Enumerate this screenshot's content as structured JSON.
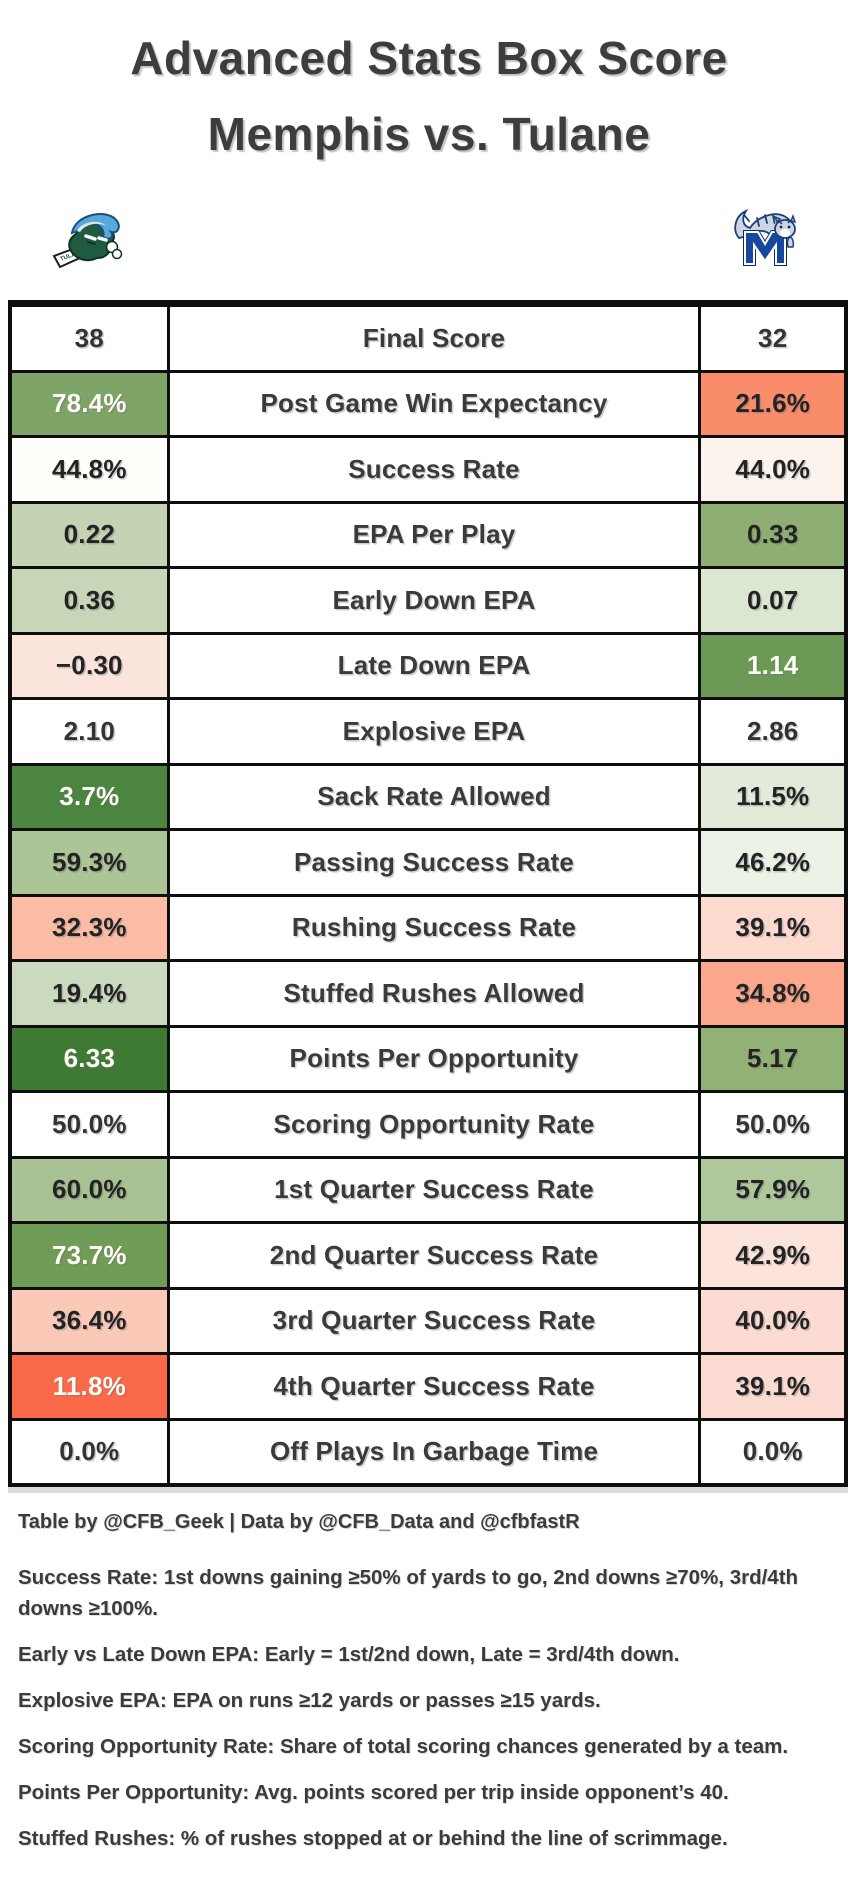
{
  "title": {
    "line1": "Advanced Stats Box Score",
    "line2": "Memphis vs. Tulane"
  },
  "logos": {
    "left": "tulane-green-wave-logo",
    "right": "memphis-tigers-logo"
  },
  "teams": {
    "left": {
      "name": "Tulane",
      "final_score": 38,
      "color_primary": "#1e5b41",
      "color_secondary": "#58a8dc"
    },
    "right": {
      "name": "Memphis",
      "final_score": 32,
      "color_primary": "#16499e",
      "color_secondary": "#ccd5e0"
    }
  },
  "colors": {
    "green_dark": "#3F7A34",
    "green_mid": "#7EA468",
    "green_light": "#C3D3B3",
    "red_strong": "#FA6A4A",
    "salmon": "#F98C6B",
    "pink_light": "#FCDCD2",
    "border_black": "#0e0e0e",
    "text_dark": "#3b3b3b"
  },
  "chart_data": {
    "type": "table",
    "title": "Advanced Stats Box Score — Memphis vs. Tulane",
    "columns": [
      "Tulane",
      "Metric",
      "Memphis"
    ],
    "rows": [
      {
        "metric": "Final Score",
        "left": "38",
        "right": "32",
        "left_bg": "#FFFFFF",
        "left_fg": "#333333",
        "right_bg": "#FFFFFF",
        "right_fg": "#333333"
      },
      {
        "metric": "Post Game Win Expectancy",
        "left": "78.4%",
        "right": "21.6%",
        "left_bg": "#7EA468",
        "left_fg": "#FDFDF5",
        "right_bg": "#F98C6B",
        "right_fg": "#232323"
      },
      {
        "metric": "Success Rate",
        "left": "44.8%",
        "right": "44.0%",
        "left_bg": "#FFFEFB",
        "left_fg": "#232323",
        "right_bg": "#FCF3ED",
        "right_fg": "#232323"
      },
      {
        "metric": "EPA Per Play",
        "left": "0.22",
        "right": "0.33",
        "left_bg": "#C3D3B3",
        "left_fg": "#232323",
        "right_bg": "#8FAE73",
        "right_fg": "#232323"
      },
      {
        "metric": "Early Down EPA",
        "left": "0.36",
        "right": "0.07",
        "left_bg": "#C6D6B7",
        "left_fg": "#232323",
        "right_bg": "#DCE7D2",
        "right_fg": "#232323"
      },
      {
        "metric": "Late Down EPA",
        "left": "−0.30",
        "right": "1.14",
        "left_bg": "#FBE4DC",
        "left_fg": "#232323",
        "right_bg": "#6C9955",
        "right_fg": "#FDFDF5"
      },
      {
        "metric": "Explosive EPA",
        "left": "2.10",
        "right": "2.86",
        "left_bg": "#FFFFFF",
        "left_fg": "#333333",
        "right_bg": "#FFFFFF",
        "right_fg": "#333333"
      },
      {
        "metric": "Sack Rate Allowed",
        "left": "3.7%",
        "right": "11.5%",
        "left_bg": "#4C8540",
        "left_fg": "#FDFDF5",
        "right_bg": "#E2EADA",
        "right_fg": "#232323"
      },
      {
        "metric": "Passing Success Rate",
        "left": "59.3%",
        "right": "46.2%",
        "left_bg": "#ACC597",
        "left_fg": "#232323",
        "right_bg": "#EDF2E7",
        "right_fg": "#232323"
      },
      {
        "metric": "Rushing Success Rate",
        "left": "32.3%",
        "right": "39.1%",
        "left_bg": "#FBBCA5",
        "left_fg": "#232323",
        "right_bg": "#FCDAD0",
        "right_fg": "#232323"
      },
      {
        "metric": "Stuffed Rushes Allowed",
        "left": "19.4%",
        "right": "34.8%",
        "left_bg": "#CBDABE",
        "left_fg": "#232323",
        "right_bg": "#FAA78C",
        "right_fg": "#232323"
      },
      {
        "metric": "Points Per Opportunity",
        "left": "6.33",
        "right": "5.17",
        "left_bg": "#3F7A34",
        "left_fg": "#FDFDF5",
        "right_bg": "#92B176",
        "right_fg": "#232323"
      },
      {
        "metric": "Scoring Opportunity Rate",
        "left": "50.0%",
        "right": "50.0%",
        "left_bg": "#FFFFFF",
        "left_fg": "#333333",
        "right_bg": "#FFFFFF",
        "right_fg": "#333333"
      },
      {
        "metric": "1st Quarter Success Rate",
        "left": "60.0%",
        "right": "57.9%",
        "left_bg": "#A9C293",
        "left_fg": "#232323",
        "right_bg": "#AFC89B",
        "right_fg": "#232323"
      },
      {
        "metric": "2nd Quarter Success Rate",
        "left": "73.7%",
        "right": "42.9%",
        "left_bg": "#719C58",
        "left_fg": "#FDFDF5",
        "right_bg": "#FCE3DB",
        "right_fg": "#232323"
      },
      {
        "metric": "3rd Quarter Success Rate",
        "left": "36.4%",
        "right": "40.0%",
        "left_bg": "#FBC9B7",
        "left_fg": "#232323",
        "right_bg": "#FCDCD2",
        "right_fg": "#232323"
      },
      {
        "metric": "4th Quarter Success Rate",
        "left": "11.8%",
        "right": "39.1%",
        "left_bg": "#FA6A4A",
        "left_fg": "#FDFDF5",
        "right_bg": "#FCDCD2",
        "right_fg": "#232323"
      },
      {
        "metric": "Off Plays In Garbage Time",
        "left": "0.0%",
        "right": "0.0%",
        "left_bg": "#FFFFFF",
        "left_fg": "#333333",
        "right_bg": "#FFFFFF",
        "right_fg": "#333333"
      }
    ]
  },
  "attribution": "Table by @CFB_Geek | Data by @CFB_Data and @cfbfastR",
  "footnotes": [
    {
      "label": "Success Rate",
      "text": "1st downs gaining ≥50% of yards to go, 2nd downs ≥70%, 3rd/4th downs ≥100%."
    },
    {
      "label": "Early vs Late Down EPA",
      "text": "Early = 1st/2nd down, Late = 3rd/4th down."
    },
    {
      "label": "Explosive EPA",
      "text": "EPA on runs ≥12 yards or passes ≥15 yards."
    },
    {
      "label": "Scoring Opportunity Rate",
      "text": "Share of total scoring chances generated by a team."
    },
    {
      "label": "Points Per Opportunity",
      "text": "Avg. points scored per trip inside opponent’s 40."
    },
    {
      "label": "Stuffed Rushes",
      "text": "% of rushes stopped at or behind the line of scrimmage."
    }
  ]
}
